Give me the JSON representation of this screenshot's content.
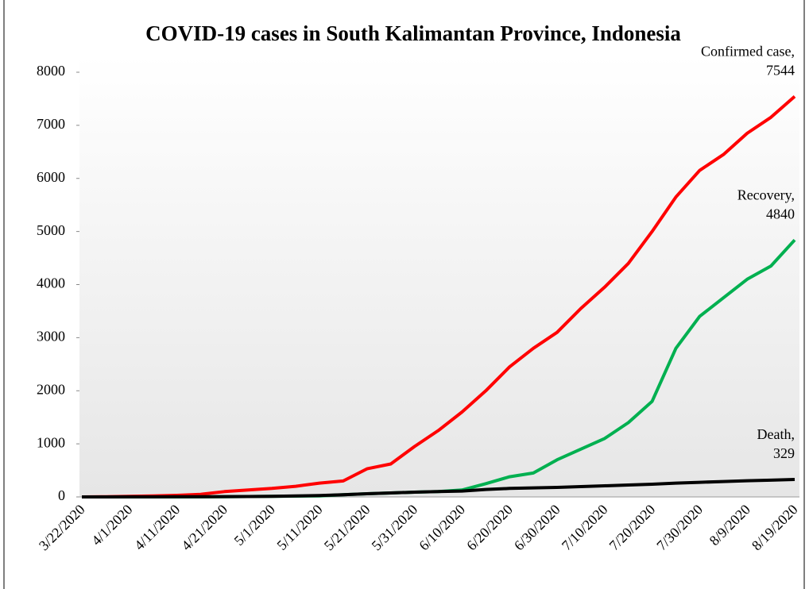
{
  "chart_data": {
    "type": "line",
    "title": "COVID-19 cases in South Kalimantan Province, Indonesia",
    "categories": [
      "3/22/2020",
      null,
      "4/1/2020",
      null,
      "4/11/2020",
      null,
      "4/21/2020",
      null,
      "5/1/2020",
      null,
      "5/11/2020",
      null,
      "5/21/2020",
      null,
      "5/31/2020",
      null,
      "6/10/2020",
      null,
      "6/20/2020",
      null,
      "6/30/2020",
      null,
      "7/10/2020",
      null,
      "7/20/2020",
      null,
      "7/30/2020",
      null,
      "8/9/2020",
      null,
      "8/19/2020"
    ],
    "series": [
      {
        "name": "Confirmed case,",
        "color": "#ff0000",
        "values": [
          0,
          5,
          10,
          20,
          30,
          50,
          100,
          130,
          160,
          200,
          260,
          300,
          530,
          620,
          950,
          1250,
          1600,
          2000,
          2450,
          2800,
          3100,
          3550,
          3950,
          4400,
          5000,
          5650,
          6150,
          6450,
          6850,
          7150,
          7544
        ]
      },
      {
        "name": "Recovery,",
        "color": "#00b050",
        "values": [
          0,
          0,
          0,
          0,
          0,
          2,
          5,
          8,
          10,
          15,
          20,
          40,
          60,
          75,
          90,
          100,
          130,
          250,
          380,
          450,
          700,
          900,
          1100,
          1400,
          1800,
          2800,
          3400,
          3750,
          4100,
          4350,
          4840
        ]
      },
      {
        "name": "Death,",
        "color": "#000000",
        "values": [
          0,
          0,
          1,
          2,
          3,
          4,
          6,
          8,
          12,
          18,
          25,
          40,
          60,
          75,
          90,
          100,
          110,
          140,
          160,
          170,
          180,
          195,
          210,
          225,
          240,
          260,
          275,
          290,
          305,
          315,
          329
        ]
      }
    ],
    "ylim": [
      0,
      8000
    ],
    "yticks": [
      0,
      1000,
      2000,
      3000,
      4000,
      5000,
      6000,
      7000,
      8000
    ]
  }
}
